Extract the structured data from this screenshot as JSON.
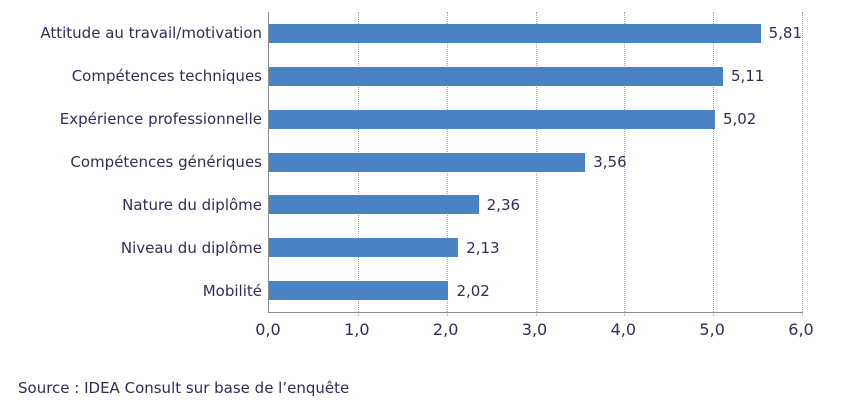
{
  "chart_data": {
    "type": "bar",
    "orientation": "horizontal",
    "title": "",
    "categories": [
      "Attitude au travail/motivation",
      "Compétences techniques",
      "Expérience professionnelle",
      "Compétences génériques",
      "Nature du diplôme",
      "Niveau du diplôme",
      "Mobilité"
    ],
    "values": [
      5.81,
      5.11,
      5.02,
      3.56,
      2.36,
      2.13,
      2.02
    ],
    "value_labels": [
      "5,81",
      "5,11",
      "5,02",
      "3,56",
      "2,36",
      "2,13",
      "2,02"
    ],
    "xlim": [
      0,
      6
    ],
    "x_tick_labels": [
      "0,0",
      "1,0",
      "2,0",
      "3,0",
      "4,0",
      "5,0",
      "6,0"
    ],
    "grid": "vertical-dotted",
    "legend": "none",
    "bar_color": "#4A82C4",
    "text_color": "#2F2C5C",
    "axis_color": "#8C8C8C",
    "gridline_color": "#A6A6A6"
  },
  "source_note": "Source : IDEA Consult sur base de l’enquête"
}
